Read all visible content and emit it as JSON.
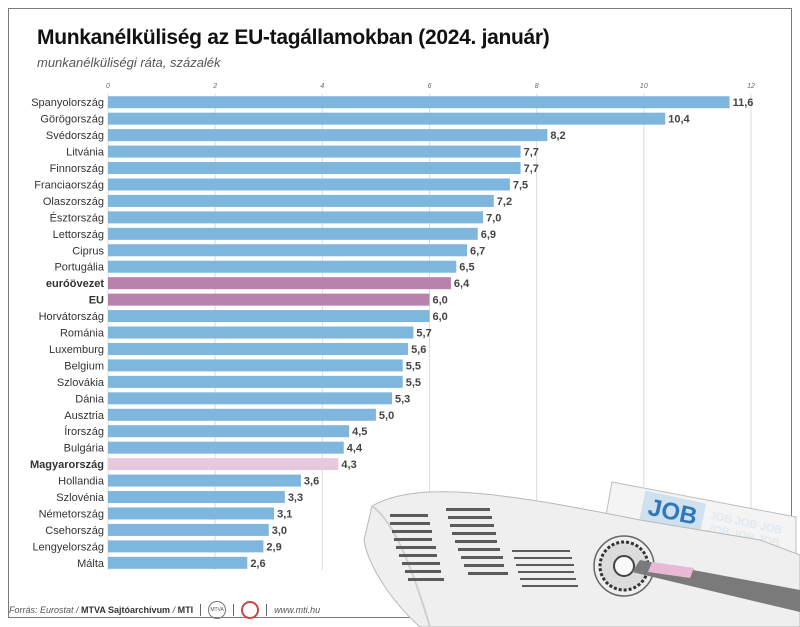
{
  "title": "Munkanélküliség az EU-tagállamokban (2024. január)",
  "subtitle": "munkanélküliségi ráta, százalék",
  "footer": {
    "source_label": "Forrás: Eurostat",
    "archive": "MTVA Sajtóarchívum",
    "agency": "MTI",
    "logo_text": "MTVA",
    "url": "www.mti.hu"
  },
  "colors": {
    "country": "#7fb6de",
    "aggregate": "#b982ac",
    "highlight": "#e7c9dd",
    "grid": "#d6dde3",
    "value_text": "#444444"
  },
  "illustration": {
    "job_text": "JOB",
    "job_repeat": "JOB JOB JOB"
  },
  "chart_data": {
    "type": "bar",
    "orientation": "horizontal",
    "title": "Munkanélküliség az EU-tagállamokban (2024. január)",
    "subtitle": "munkanélküliségi ráta, százalék",
    "xlim": [
      0,
      12
    ],
    "ticks": [
      "0",
      "2",
      "4",
      "6",
      "8",
      "10",
      "12"
    ],
    "grid": true,
    "categories": [
      "Spanyolország",
      "Görögország",
      "Svédország",
      "Litvánia",
      "Finnország",
      "Franciaország",
      "Olaszország",
      "Észtország",
      "Lettország",
      "Ciprus",
      "Portugália",
      "euróövezet",
      "EU",
      "Horvátország",
      "Románia",
      "Luxemburg",
      "Belgium",
      "Szlovákia",
      "Dánia",
      "Ausztria",
      "Írország",
      "Bulgária",
      "Magyarország",
      "Hollandia",
      "Szlovénia",
      "Németország",
      "Csehország",
      "Lengyelország",
      "Málta"
    ],
    "values": [
      11.6,
      10.4,
      8.2,
      7.7,
      7.7,
      7.5,
      7.2,
      7.0,
      6.9,
      6.7,
      6.5,
      6.4,
      6.0,
      6.0,
      5.7,
      5.6,
      5.5,
      5.5,
      5.3,
      5.0,
      4.5,
      4.4,
      4.3,
      3.6,
      3.3,
      3.1,
      3.0,
      2.9,
      2.6
    ],
    "value_labels": [
      "11,6",
      "10,4",
      "8,2",
      "7,7",
      "7,7",
      "7,5",
      "7,2",
      "7,0",
      "6,9",
      "6,7",
      "6,5",
      "6,4",
      "6,0",
      "6,0",
      "5,7",
      "5,6",
      "5,5",
      "5,5",
      "5,3",
      "5,0",
      "4,5",
      "4,4",
      "4,3",
      "3,6",
      "3,3",
      "3,1",
      "3,0",
      "2,9",
      "2,6"
    ],
    "aggregates": [
      "euróövezet",
      "EU"
    ],
    "highlighted": [
      "Magyarország"
    ]
  }
}
